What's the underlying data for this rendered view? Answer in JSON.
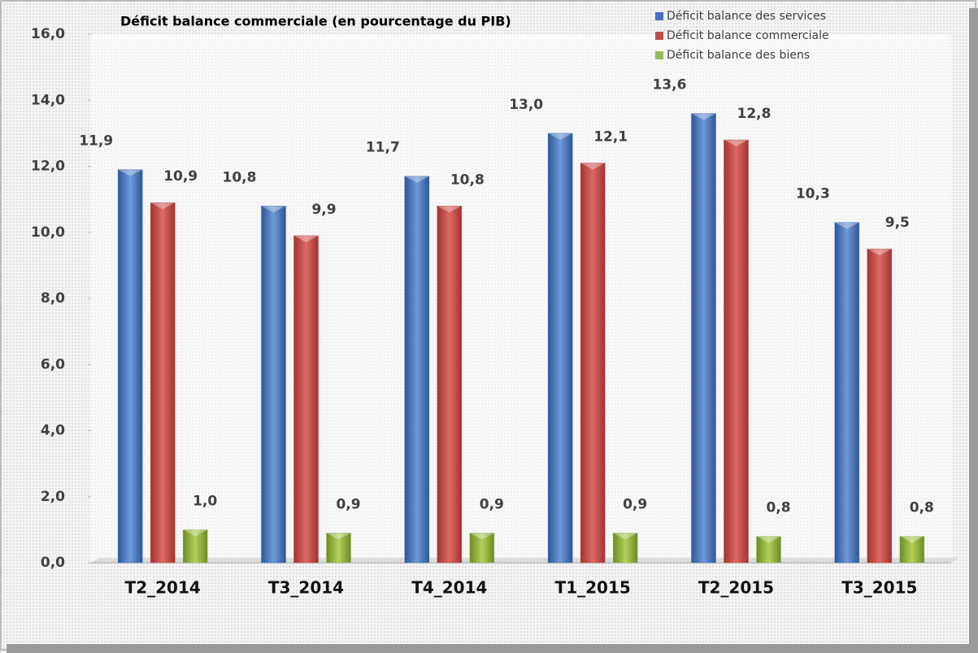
{
  "chart_data": {
    "type": "bar",
    "title": "Déficit balance commerciale (en pourcentage du PIB)",
    "categories": [
      "T2_2014",
      "T3_2014",
      "T4_2014",
      "T1_2015",
      "T2_2015",
      "T3_2015"
    ],
    "series": [
      {
        "name": "Déficit balance des services",
        "color": "#4472c4",
        "values": [
          11.9,
          10.8,
          11.7,
          13.0,
          13.6,
          10.3
        ],
        "value_labels": [
          "11,9",
          "10,8",
          "11,7",
          "13,0",
          "13,6",
          "10,3"
        ]
      },
      {
        "name": "Déficit balance commerciale",
        "color": "#c0504d",
        "values": [
          10.9,
          9.9,
          10.8,
          12.1,
          12.8,
          9.5
        ],
        "value_labels": [
          "10,9",
          "9,9",
          "10,8",
          "12,1",
          "12,8",
          "9,5"
        ]
      },
      {
        "name": "Déficit balance des biens",
        "color": "#9bbb59",
        "values": [
          1.0,
          0.9,
          0.9,
          0.9,
          0.8,
          0.8
        ],
        "value_labels": [
          "1,0",
          "0,9",
          "0,9",
          "0,9",
          "0,8",
          "0,8"
        ]
      }
    ],
    "ylim": [
      0,
      16
    ],
    "yticks": [
      {
        "value": 0,
        "label": "0,0"
      },
      {
        "value": 2,
        "label": "2,0"
      },
      {
        "value": 4,
        "label": "4,0"
      },
      {
        "value": 6,
        "label": "6,0"
      },
      {
        "value": 8,
        "label": "8,0"
      },
      {
        "value": 10,
        "label": "10,0"
      },
      {
        "value": 12,
        "label": "12,0"
      },
      {
        "value": 14,
        "label": "14,0"
      },
      {
        "value": 16,
        "label": "16,0"
      }
    ],
    "grid": false,
    "legend": "top-right"
  }
}
